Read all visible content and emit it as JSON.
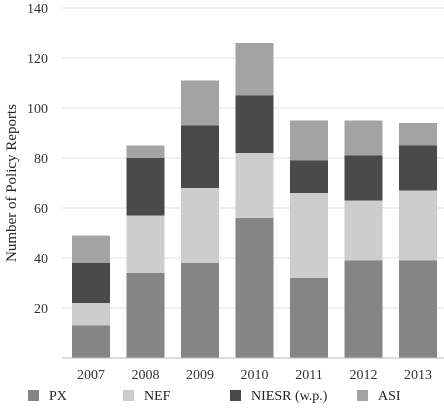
{
  "chart_data": {
    "type": "bar",
    "stacked": true,
    "title": "",
    "xlabel": "",
    "ylabel": "Number of Policy Reports",
    "ylim": [
      0,
      140
    ],
    "yticks": [
      20,
      40,
      60,
      80,
      100,
      120,
      140
    ],
    "grid": true,
    "legend_position": "bottom",
    "categories": [
      "2007",
      "2008",
      "2009",
      "2010",
      "2011",
      "2012",
      "2013"
    ],
    "series": [
      {
        "name": "PX",
        "color": "#858585",
        "values": [
          13,
          34,
          38,
          56,
          32,
          39,
          39
        ]
      },
      {
        "name": "NEF",
        "color": "#cdcdcd",
        "values": [
          9,
          23,
          30,
          26,
          34,
          24,
          28
        ]
      },
      {
        "name": "NIESR (w.p.)",
        "color": "#4a4a4a",
        "values": [
          16,
          23,
          25,
          23,
          13,
          18,
          18
        ]
      },
      {
        "name": "ASI",
        "color": "#a3a3a3",
        "values": [
          11,
          5,
          18,
          21,
          16,
          14,
          9
        ]
      }
    ]
  }
}
